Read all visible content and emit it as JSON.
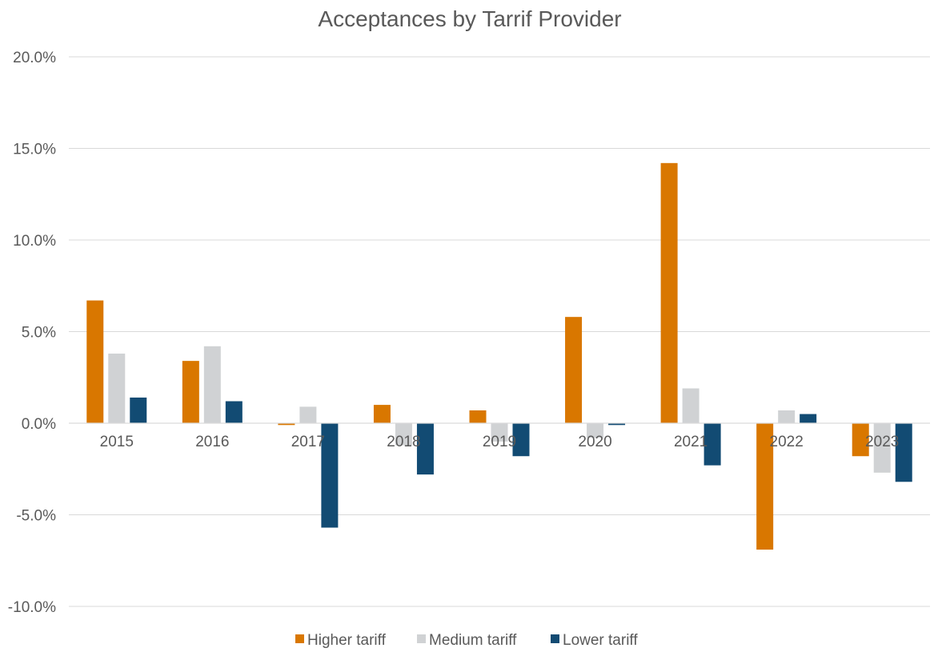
{
  "chart_data": {
    "type": "bar",
    "title": "Acceptances by Tarrif Provider",
    "categories": [
      "2015",
      "2016",
      "2017",
      "2018",
      "2019",
      "2020",
      "2021",
      "2022",
      "2023"
    ],
    "series": [
      {
        "name": "Higher tariff",
        "color": "#D97700",
        "values": [
          6.7,
          3.4,
          -0.1,
          1.0,
          0.7,
          5.8,
          14.2,
          -6.9,
          -1.8
        ]
      },
      {
        "name": "Medium tariff",
        "color": "#D0D2D4",
        "values": [
          3.8,
          4.2,
          0.9,
          -1.2,
          -1.0,
          -0.8,
          1.9,
          0.7,
          -2.7
        ]
      },
      {
        "name": "Lower tariff",
        "color": "#124B73",
        "values": [
          1.4,
          1.2,
          -5.7,
          -2.8,
          -1.8,
          -0.1,
          -2.3,
          0.5,
          -3.2
        ]
      }
    ],
    "ylim": [
      -10,
      20
    ],
    "yticks": [
      "20.0%",
      "15.0%",
      "10.0%",
      "5.0%",
      "0.0%",
      "-5.0%",
      "-10.0%"
    ],
    "ytick_values": [
      20,
      15,
      10,
      5,
      0,
      -5,
      -10
    ],
    "grid": true,
    "legend_position": "bottom"
  }
}
